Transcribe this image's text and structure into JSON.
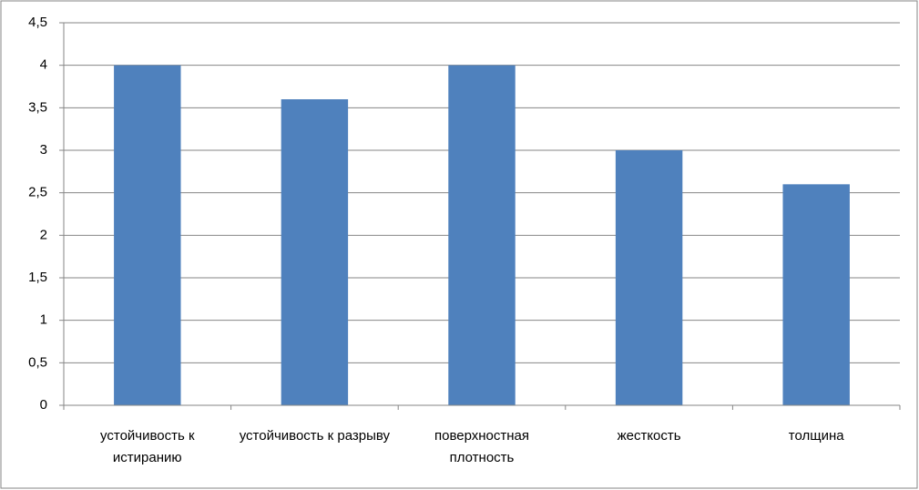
{
  "chart_data": {
    "type": "bar",
    "categories": [
      "устойчивость к истиранию",
      "устойчивость к разрыву",
      "поверхностная плотность",
      "жесткость",
      "толщина"
    ],
    "values": [
      4,
      3.6,
      4,
      3,
      2.6
    ],
    "color": "#4f81bd",
    "ylim": [
      0,
      4.5
    ],
    "yticks": [
      0,
      {
        "value": 0.5,
        "label": "0,5"
      },
      1,
      {
        "value": 1.5,
        "label": "1,5"
      },
      2,
      {
        "value": 2.5,
        "label": "2,5"
      },
      3,
      {
        "value": 3.5,
        "label": "3,5"
      },
      4,
      {
        "value": 4.5,
        "label": "4,5"
      }
    ],
    "grid": true
  }
}
